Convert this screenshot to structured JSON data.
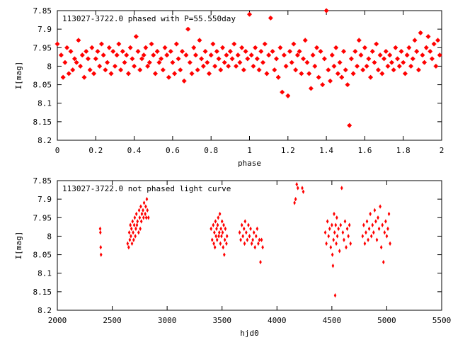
{
  "chart_data": [
    {
      "type": "scatter",
      "title": "113027-3722.0 phased with P=55.550day",
      "xlabel": "phase",
      "ylabel": "I[mag]",
      "xlim": [
        0,
        2
      ],
      "ylim": [
        7.85,
        8.2
      ],
      "y_inverted": true,
      "x_ticks": [
        "0",
        "0.2",
        "0.4",
        "0.6",
        "0.8",
        "1",
        "1.2",
        "1.4",
        "1.6",
        "1.8",
        "2"
      ],
      "y_ticks": [
        "7.85",
        "7.9",
        "7.95",
        "8",
        "8.05",
        "8.1",
        "8.15",
        "8.2"
      ],
      "marker": "star",
      "color": "#ff0000",
      "grid": false,
      "points": [
        [
          0.0,
          7.94
        ],
        [
          0.02,
          7.97
        ],
        [
          0.03,
          8.03
        ],
        [
          0.04,
          7.99
        ],
        [
          0.05,
          7.95
        ],
        [
          0.06,
          8.02
        ],
        [
          0.07,
          7.96
        ],
        [
          0.08,
          8.01
        ],
        [
          0.09,
          7.98
        ],
        [
          0.1,
          7.99
        ],
        [
          0.11,
          7.93
        ],
        [
          0.12,
          8.0
        ],
        [
          0.13,
          7.97
        ],
        [
          0.14,
          8.03
        ],
        [
          0.15,
          7.96
        ],
        [
          0.16,
          7.98
        ],
        [
          0.17,
          8.01
        ],
        [
          0.18,
          7.95
        ],
        [
          0.19,
          8.02
        ],
        [
          0.2,
          7.98
        ],
        [
          0.21,
          7.96
        ],
        [
          0.22,
          8.0
        ],
        [
          0.23,
          7.94
        ],
        [
          0.24,
          7.97
        ],
        [
          0.25,
          8.01
        ],
        [
          0.26,
          7.99
        ],
        [
          0.27,
          7.95
        ],
        [
          0.28,
          8.02
        ],
        [
          0.29,
          7.96
        ],
        [
          0.3,
          8.0
        ],
        [
          0.31,
          7.97
        ],
        [
          0.32,
          7.94
        ],
        [
          0.33,
          8.01
        ],
        [
          0.34,
          7.96
        ],
        [
          0.35,
          7.99
        ],
        [
          0.36,
          7.97
        ],
        [
          0.37,
          8.02
        ],
        [
          0.38,
          7.95
        ],
        [
          0.39,
          7.98
        ],
        [
          0.4,
          8.0
        ],
        [
          0.41,
          7.92
        ],
        [
          0.42,
          7.96
        ],
        [
          0.43,
          8.01
        ],
        [
          0.44,
          7.98
        ],
        [
          0.45,
          7.97
        ],
        [
          0.46,
          7.95
        ],
        [
          0.47,
          8.0
        ],
        [
          0.48,
          7.99
        ],
        [
          0.49,
          7.94
        ],
        [
          0.5,
          7.97
        ],
        [
          0.51,
          8.02
        ],
        [
          0.52,
          7.96
        ],
        [
          0.53,
          7.99
        ],
        [
          0.54,
          7.98
        ],
        [
          0.55,
          8.01
        ],
        [
          0.56,
          7.95
        ],
        [
          0.57,
          7.97
        ],
        [
          0.58,
          8.03
        ],
        [
          0.59,
          7.96
        ],
        [
          0.6,
          7.99
        ],
        [
          0.61,
          8.02
        ],
        [
          0.62,
          7.94
        ],
        [
          0.63,
          7.98
        ],
        [
          0.64,
          8.01
        ],
        [
          0.65,
          7.96
        ],
        [
          0.66,
          8.04
        ],
        [
          0.67,
          7.97
        ],
        [
          0.68,
          7.9
        ],
        [
          0.69,
          7.99
        ],
        [
          0.7,
          8.02
        ],
        [
          0.71,
          7.95
        ],
        [
          0.72,
          7.97
        ],
        [
          0.73,
          8.01
        ],
        [
          0.74,
          7.93
        ],
        [
          0.75,
          7.98
        ],
        [
          0.76,
          8.0
        ],
        [
          0.77,
          7.96
        ],
        [
          0.78,
          7.99
        ],
        [
          0.79,
          8.02
        ],
        [
          0.8,
          7.97
        ],
        [
          0.81,
          7.94
        ],
        [
          0.82,
          8.0
        ],
        [
          0.83,
          7.96
        ],
        [
          0.84,
          7.98
        ],
        [
          0.85,
          8.01
        ],
        [
          0.86,
          7.95
        ],
        [
          0.87,
          7.99
        ],
        [
          0.88,
          7.97
        ],
        [
          0.89,
          8.0
        ],
        [
          0.9,
          7.96
        ],
        [
          0.91,
          7.98
        ],
        [
          0.92,
          7.94
        ],
        [
          0.93,
          8.0
        ],
        [
          0.94,
          7.97
        ],
        [
          0.95,
          7.99
        ],
        [
          0.96,
          7.95
        ],
        [
          0.97,
          8.01
        ],
        [
          0.98,
          7.96
        ],
        [
          0.99,
          7.98
        ],
        [
          1.0,
          7.86
        ],
        [
          1.01,
          7.97
        ],
        [
          1.02,
          8.0
        ],
        [
          1.03,
          7.95
        ],
        [
          1.04,
          7.98
        ],
        [
          1.05,
          8.01
        ],
        [
          1.06,
          7.96
        ],
        [
          1.07,
          7.99
        ],
        [
          1.08,
          7.94
        ],
        [
          1.09,
          8.02
        ],
        [
          1.1,
          7.97
        ],
        [
          1.11,
          7.87
        ],
        [
          1.12,
          7.96
        ],
        [
          1.13,
          8.01
        ],
        [
          1.14,
          7.98
        ],
        [
          1.15,
          8.03
        ],
        [
          1.16,
          7.95
        ],
        [
          1.17,
          8.07
        ],
        [
          1.18,
          7.97
        ],
        [
          1.19,
          8.0
        ],
        [
          1.2,
          8.08
        ],
        [
          1.21,
          7.96
        ],
        [
          1.22,
          7.99
        ],
        [
          1.23,
          7.94
        ],
        [
          1.24,
          8.01
        ],
        [
          1.25,
          7.97
        ],
        [
          1.26,
          7.96
        ],
        [
          1.27,
          8.02
        ],
        [
          1.28,
          7.98
        ],
        [
          1.29,
          7.93
        ],
        [
          1.3,
          7.99
        ],
        [
          1.31,
          8.02
        ],
        [
          1.32,
          8.06
        ],
        [
          1.33,
          7.97
        ],
        [
          1.34,
          8.0
        ],
        [
          1.35,
          7.95
        ],
        [
          1.36,
          8.03
        ],
        [
          1.37,
          7.96
        ],
        [
          1.38,
          8.05
        ],
        [
          1.39,
          7.98
        ],
        [
          1.4,
          7.85
        ],
        [
          1.41,
          8.01
        ],
        [
          1.42,
          8.04
        ],
        [
          1.43,
          7.97
        ],
        [
          1.44,
          8.0
        ],
        [
          1.45,
          7.95
        ],
        [
          1.46,
          8.02
        ],
        [
          1.47,
          7.99
        ],
        [
          1.48,
          8.03
        ],
        [
          1.49,
          7.96
        ],
        [
          1.5,
          8.01
        ],
        [
          1.51,
          8.05
        ],
        [
          1.52,
          8.16
        ],
        [
          1.53,
          7.98
        ],
        [
          1.54,
          8.02
        ],
        [
          1.55,
          7.96
        ],
        [
          1.56,
          8.0
        ],
        [
          1.57,
          7.93
        ],
        [
          1.58,
          7.97
        ],
        [
          1.59,
          8.01
        ],
        [
          1.6,
          7.95
        ],
        [
          1.61,
          8.0
        ],
        [
          1.62,
          7.98
        ],
        [
          1.63,
          8.03
        ],
        [
          1.64,
          7.96
        ],
        [
          1.65,
          7.99
        ],
        [
          1.66,
          7.94
        ],
        [
          1.67,
          8.01
        ],
        [
          1.68,
          7.97
        ],
        [
          1.69,
          8.02
        ],
        [
          1.7,
          7.98
        ],
        [
          1.71,
          7.96
        ],
        [
          1.72,
          8.0
        ],
        [
          1.73,
          7.97
        ],
        [
          1.74,
          7.99
        ],
        [
          1.75,
          8.01
        ],
        [
          1.76,
          7.95
        ],
        [
          1.77,
          7.98
        ],
        [
          1.78,
          8.0
        ],
        [
          1.79,
          7.96
        ],
        [
          1.8,
          7.99
        ],
        [
          1.81,
          8.02
        ],
        [
          1.82,
          7.97
        ],
        [
          1.83,
          7.95
        ],
        [
          1.84,
          8.0
        ],
        [
          1.85,
          7.98
        ],
        [
          1.86,
          7.93
        ],
        [
          1.87,
          7.96
        ],
        [
          1.88,
          8.01
        ],
        [
          1.89,
          7.91
        ],
        [
          1.9,
          7.97
        ],
        [
          1.91,
          7.99
        ],
        [
          1.92,
          7.95
        ],
        [
          1.93,
          7.92
        ],
        [
          1.94,
          7.96
        ],
        [
          1.95,
          7.98
        ],
        [
          1.96,
          7.94
        ],
        [
          1.97,
          8.0
        ],
        [
          1.98,
          7.93
        ],
        [
          1.99,
          7.97
        ]
      ]
    },
    {
      "type": "scatter",
      "title": "113027-3722.0 not phased light curve",
      "xlabel": "hjd0",
      "ylabel": "I[mag]",
      "xlim": [
        2000,
        5500
      ],
      "ylim": [
        7.85,
        8.2
      ],
      "y_inverted": true,
      "x_ticks": [
        "2000",
        "2500",
        "3000",
        "3500",
        "4000",
        "4500",
        "5000",
        "5500"
      ],
      "y_ticks": [
        "7.85",
        "7.9",
        "7.95",
        "8",
        "8.05",
        "8.1",
        "8.15",
        "8.2"
      ],
      "marker": "diamond",
      "color": "#ff0000",
      "grid": false,
      "points": [
        [
          2390,
          7.98
        ],
        [
          2392,
          7.99
        ],
        [
          2395,
          8.03
        ],
        [
          2398,
          8.05
        ],
        [
          2640,
          8.02
        ],
        [
          2650,
          8.03
        ],
        [
          2655,
          7.99
        ],
        [
          2660,
          8.01
        ],
        [
          2665,
          7.97
        ],
        [
          2670,
          8.0
        ],
        [
          2675,
          7.98
        ],
        [
          2680,
          8.02
        ],
        [
          2685,
          7.96
        ],
        [
          2690,
          7.99
        ],
        [
          2695,
          8.01
        ],
        [
          2700,
          7.97
        ],
        [
          2705,
          7.95
        ],
        [
          2710,
          8.0
        ],
        [
          2715,
          7.98
        ],
        [
          2720,
          7.94
        ],
        [
          2725,
          7.97
        ],
        [
          2730,
          7.96
        ],
        [
          2740,
          7.99
        ],
        [
          2745,
          7.93
        ],
        [
          2750,
          7.95
        ],
        [
          2755,
          7.98
        ],
        [
          2760,
          7.92
        ],
        [
          2765,
          7.96
        ],
        [
          2770,
          7.94
        ],
        [
          2780,
          7.93
        ],
        [
          2785,
          7.95
        ],
        [
          2790,
          7.91
        ],
        [
          2800,
          7.94
        ],
        [
          2805,
          7.92
        ],
        [
          2810,
          7.95
        ],
        [
          2815,
          7.9
        ],
        [
          2820,
          7.93
        ],
        [
          2830,
          7.95
        ],
        [
          3400,
          7.98
        ],
        [
          3410,
          8.01
        ],
        [
          3420,
          7.97
        ],
        [
          3425,
          8.02
        ],
        [
          3430,
          7.99
        ],
        [
          3435,
          8.03
        ],
        [
          3440,
          7.96
        ],
        [
          3445,
          8.0
        ],
        [
          3450,
          7.98
        ],
        [
          3455,
          8.01
        ],
        [
          3460,
          7.97
        ],
        [
          3465,
          7.95
        ],
        [
          3470,
          8.0
        ],
        [
          3475,
          7.99
        ],
        [
          3480,
          7.94
        ],
        [
          3485,
          8.02
        ],
        [
          3490,
          7.98
        ],
        [
          3495,
          8.0
        ],
        [
          3500,
          7.96
        ],
        [
          3505,
          7.99
        ],
        [
          3510,
          8.03
        ],
        [
          3515,
          7.97
        ],
        [
          3520,
          8.05
        ],
        [
          3525,
          8.01
        ],
        [
          3530,
          7.98
        ],
        [
          3540,
          8.02
        ],
        [
          3545,
          8.0
        ],
        [
          3660,
          7.99
        ],
        [
          3670,
          8.01
        ],
        [
          3680,
          7.97
        ],
        [
          3690,
          8.0
        ],
        [
          3700,
          7.98
        ],
        [
          3705,
          8.02
        ],
        [
          3710,
          7.96
        ],
        [
          3720,
          7.99
        ],
        [
          3730,
          8.01
        ],
        [
          3740,
          7.97
        ],
        [
          3750,
          8.0
        ],
        [
          3760,
          7.98
        ],
        [
          3770,
          8.02
        ],
        [
          3780,
          8.01
        ],
        [
          3790,
          7.99
        ],
        [
          3800,
          8.03
        ],
        [
          3810,
          8.0
        ],
        [
          3820,
          7.98
        ],
        [
          3830,
          8.02
        ],
        [
          3840,
          8.01
        ],
        [
          3850,
          8.07
        ],
        [
          3860,
          8.01
        ],
        [
          3870,
          8.03
        ],
        [
          4160,
          7.91
        ],
        [
          4170,
          7.9
        ],
        [
          4180,
          7.86
        ],
        [
          4190,
          7.87
        ],
        [
          4230,
          7.87
        ],
        [
          4240,
          7.88
        ],
        [
          4440,
          7.99
        ],
        [
          4450,
          8.02
        ],
        [
          4460,
          7.96
        ],
        [
          4470,
          8.0
        ],
        [
          4480,
          7.98
        ],
        [
          4490,
          8.03
        ],
        [
          4500,
          7.97
        ],
        [
          4505,
          8.05
        ],
        [
          4510,
          8.08
        ],
        [
          4515,
          8.01
        ],
        [
          4520,
          7.94
        ],
        [
          4525,
          7.99
        ],
        [
          4530,
          8.16
        ],
        [
          4535,
          7.97
        ],
        [
          4540,
          8.02
        ],
        [
          4545,
          7.95
        ],
        [
          4550,
          8.0
        ],
        [
          4560,
          7.98
        ],
        [
          4570,
          8.04
        ],
        [
          4580,
          7.97
        ],
        [
          4590,
          7.87
        ],
        [
          4600,
          7.99
        ],
        [
          4610,
          8.01
        ],
        [
          4620,
          7.96
        ],
        [
          4630,
          8.03
        ],
        [
          4640,
          7.98
        ],
        [
          4650,
          8.0
        ],
        [
          4660,
          7.97
        ],
        [
          4670,
          8.02
        ],
        [
          4780,
          8.0
        ],
        [
          4790,
          7.97
        ],
        [
          4800,
          8.02
        ],
        [
          4810,
          7.99
        ],
        [
          4820,
          7.96
        ],
        [
          4830,
          8.01
        ],
        [
          4840,
          7.98
        ],
        [
          4850,
          7.94
        ],
        [
          4860,
          8.0
        ],
        [
          4870,
          7.97
        ],
        [
          4880,
          7.99
        ],
        [
          4890,
          7.93
        ],
        [
          4900,
          7.96
        ],
        [
          4910,
          8.01
        ],
        [
          4920,
          7.95
        ],
        [
          4930,
          7.98
        ],
        [
          4940,
          7.92
        ],
        [
          4950,
          8.03
        ],
        [
          4960,
          7.97
        ],
        [
          4970,
          8.07
        ],
        [
          4980,
          7.99
        ],
        [
          4990,
          7.96
        ],
        [
          5000,
          8.0
        ],
        [
          5010,
          7.98
        ],
        [
          5020,
          7.94
        ],
        [
          5030,
          8.02
        ]
      ]
    }
  ]
}
